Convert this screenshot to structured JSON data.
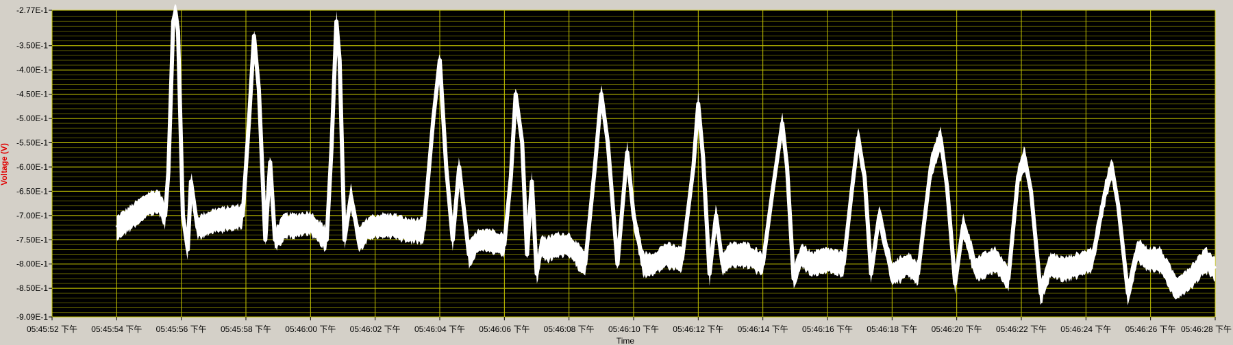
{
  "chart_data": {
    "type": "line",
    "title": "",
    "xlabel": "Time",
    "ylabel": "Voltage (V)",
    "ylim": [
      -0.909,
      -0.277
    ],
    "x_range_seconds": [
      "05:45:52",
      "05:46:28"
    ],
    "y_tick_labels": [
      "-2.77E-1",
      "-3.50E-1",
      "-4.00E-1",
      "-4.50E-1",
      "-5.00E-1",
      "-5.50E-1",
      "-6.00E-1",
      "-6.50E-1",
      "-7.00E-1",
      "-7.50E-1",
      "-8.00E-1",
      "-8.50E-1",
      "-9.09E-1"
    ],
    "y_tick_values": [
      -0.277,
      -0.35,
      -0.4,
      -0.45,
      -0.5,
      -0.55,
      -0.6,
      -0.65,
      -0.7,
      -0.75,
      -0.8,
      -0.85,
      -0.909
    ],
    "x_tick_labels": [
      "05:45:52 下午",
      "05:45:54 下午",
      "05:45:56 下午",
      "05:45:58 下午",
      "05:46:00 下午",
      "05:46:02 下午",
      "05:46:04 下午",
      "05:46:06 下午",
      "05:46:08 下午",
      "05:46:10 下午",
      "05:46:12 下午",
      "05:46:14 下午",
      "05:46:16 下午",
      "05:46:18 下午",
      "05:46:20 下午",
      "05:46:22 下午",
      "05:46:24 下午",
      "05:46:26 下午",
      "05:46:28 下午"
    ],
    "grid": true,
    "colors": {
      "plot_bg": "#000000",
      "major_grid": "#c8c800",
      "minor_grid": "#5a5a00",
      "trace": "#ffffff",
      "frame": "#d4d0c8",
      "ylabel": "#e00000"
    },
    "series": [
      {
        "x_seconds": [
          54.0,
          54.5,
          55.0,
          55.3,
          55.5,
          55.6,
          55.75,
          55.82,
          55.9,
          56.05,
          56.2,
          56.3,
          56.5,
          57.0,
          57.5,
          57.9,
          58.1,
          58.25,
          58.4,
          58.6,
          58.75,
          58.9,
          59.2,
          59.5,
          60.0,
          60.5,
          60.65,
          60.8,
          60.9,
          61.05,
          61.25,
          61.5,
          61.8,
          62.2,
          62.6,
          63.0,
          63.5,
          63.8,
          64.0,
          64.2,
          64.4,
          64.6,
          64.9,
          65.2,
          65.5,
          66.0,
          66.2,
          66.35,
          66.55,
          66.7,
          66.85,
          67.0,
          67.15,
          67.3,
          67.6,
          68.0,
          68.5,
          68.8,
          69.0,
          69.2,
          69.5,
          69.8,
          70.0,
          70.3,
          70.6,
          71.0,
          71.5,
          71.85,
          72.0,
          72.15,
          72.35,
          72.55,
          72.75,
          73.0,
          73.5,
          74.0,
          74.3,
          74.6,
          74.75,
          74.95,
          75.2,
          75.5,
          76.0,
          76.5,
          76.75,
          76.95,
          77.15,
          77.35,
          77.6,
          78.0,
          78.5,
          78.8,
          79.2,
          79.5,
          79.7,
          79.95,
          80.2,
          80.6,
          81.2,
          81.6,
          81.9,
          82.1,
          82.3,
          82.6,
          82.9,
          83.3,
          83.8,
          84.2,
          84.6,
          84.8,
          85.0,
          85.3,
          85.6,
          85.9,
          86.3,
          86.8,
          87.2,
          87.7,
          88.0
        ],
        "y_volts": [
          -0.725,
          -0.7,
          -0.675,
          -0.67,
          -0.7,
          -0.61,
          -0.3,
          -0.28,
          -0.32,
          -0.7,
          -0.77,
          -0.63,
          -0.725,
          -0.71,
          -0.705,
          -0.7,
          -0.5,
          -0.33,
          -0.44,
          -0.75,
          -0.59,
          -0.75,
          -0.72,
          -0.72,
          -0.715,
          -0.75,
          -0.56,
          -0.3,
          -0.38,
          -0.75,
          -0.66,
          -0.75,
          -0.725,
          -0.72,
          -0.72,
          -0.73,
          -0.73,
          -0.5,
          -0.38,
          -0.6,
          -0.75,
          -0.6,
          -0.78,
          -0.75,
          -0.75,
          -0.76,
          -0.62,
          -0.45,
          -0.55,
          -0.78,
          -0.63,
          -0.82,
          -0.76,
          -0.77,
          -0.76,
          -0.76,
          -0.8,
          -0.6,
          -0.45,
          -0.55,
          -0.8,
          -0.57,
          -0.7,
          -0.8,
          -0.8,
          -0.78,
          -0.79,
          -0.6,
          -0.47,
          -0.58,
          -0.82,
          -0.7,
          -0.8,
          -0.78,
          -0.78,
          -0.8,
          -0.65,
          -0.51,
          -0.6,
          -0.83,
          -0.78,
          -0.8,
          -0.79,
          -0.8,
          -0.65,
          -0.54,
          -0.62,
          -0.82,
          -0.7,
          -0.82,
          -0.8,
          -0.82,
          -0.6,
          -0.54,
          -0.64,
          -0.84,
          -0.72,
          -0.81,
          -0.79,
          -0.83,
          -0.62,
          -0.58,
          -0.65,
          -0.86,
          -0.8,
          -0.81,
          -0.8,
          -0.79,
          -0.65,
          -0.6,
          -0.68,
          -0.86,
          -0.77,
          -0.79,
          -0.79,
          -0.85,
          -0.83,
          -0.79,
          -0.81
        ]
      }
    ]
  }
}
